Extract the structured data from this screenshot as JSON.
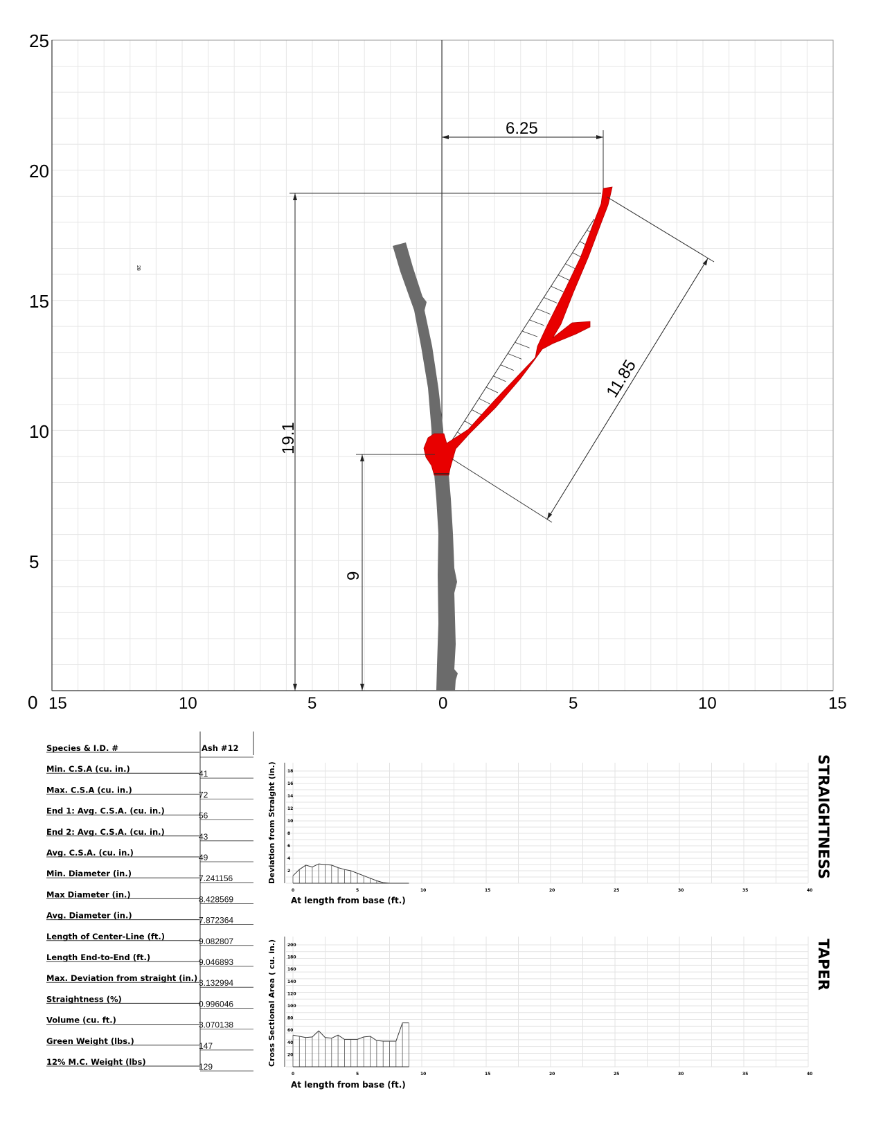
{
  "colors": {
    "trunk": "#6b6b6b",
    "highlight": "#e80000",
    "grid": "#e6e6e6",
    "frame": "#555555"
  },
  "main_plot": {
    "y_ticks": [
      "25",
      "20",
      "15",
      "10",
      "5",
      "0"
    ],
    "x_ticks": [
      "15",
      "10",
      "5",
      "0",
      "5",
      "10",
      "15"
    ],
    "stray_mark": "28",
    "dims": {
      "width": "6.25",
      "total_height": "19.1",
      "branch_height": "9",
      "branch_length": "11.85"
    }
  },
  "table": {
    "rows": [
      {
        "label": "Species & I.D. #",
        "value": "Ash #12"
      },
      {
        "label": "Min. C.S.A (cu. in.)",
        "value": "41"
      },
      {
        "label": "Max. C.S.A (cu. in.)",
        "value": "72"
      },
      {
        "label": "End 1:  Avg. C.S.A. (cu. in.)",
        "value": "56"
      },
      {
        "label": "End 2:  Avg. C.S.A. (cu. in.)",
        "value": "43"
      },
      {
        "label": "Avg. C.S.A. (cu. in.)",
        "value": "49"
      },
      {
        "label": "Min. Diameter (in.)",
        "value": "7.241156"
      },
      {
        "label": "Max Diameter (in.)",
        "value": "8.428569"
      },
      {
        "label": "Avg. Diameter (in.)",
        "value": "7.872364"
      },
      {
        "label": "Length of Center-Line (ft.)",
        "value": "9.082807"
      },
      {
        "label": "Length End-to-End (ft.)",
        "value": "9.046893"
      },
      {
        "label": "Max. Deviation from straight (in.)",
        "value": "3.132994"
      },
      {
        "label": "Straightness (%)",
        "value": "0.996046"
      },
      {
        "label": "Volume (cu. ft.)",
        "value": "3.070138"
      },
      {
        "label": "Green Weight (lbs.)",
        "value": "147"
      },
      {
        "label": "12% M.C. Weight (lbs)",
        "value": "129"
      }
    ]
  },
  "chart_data": [
    {
      "type": "area",
      "title": "STRAIGHTNESS",
      "xlabel": "At length from base (ft.)",
      "ylabel": "Deviation from Straight (in.)",
      "xlim": [
        0,
        40
      ],
      "ylim": [
        0,
        18
      ],
      "x_ticks": [
        "0",
        "5",
        "10",
        "15",
        "20",
        "25",
        "30",
        "35",
        "40"
      ],
      "y_ticks": [
        "2",
        "4",
        "6",
        "8",
        "10",
        "12",
        "14",
        "16",
        "18"
      ],
      "x": [
        0,
        0.5,
        1,
        1.5,
        2,
        2.5,
        3,
        3.5,
        4,
        4.5,
        5,
        5.5,
        6,
        6.5,
        7,
        7.5,
        8,
        8.5,
        9
      ],
      "values": [
        1.2,
        2.2,
        2.9,
        2.6,
        3.1,
        3.0,
        2.9,
        2.5,
        2.2,
        2.0,
        1.6,
        1.2,
        0.8,
        0.4,
        0.1,
        0.0,
        0.0,
        0.0,
        0.0
      ]
    },
    {
      "type": "area",
      "title": "TAPER",
      "xlabel": "At length from base (ft.)",
      "ylabel": "Cross Sectional Area ( cu. in.)",
      "xlim": [
        0,
        40
      ],
      "ylim": [
        0,
        200
      ],
      "x_ticks": [
        "0",
        "5",
        "10",
        "15",
        "20",
        "25",
        "30",
        "35",
        "40"
      ],
      "y_ticks": [
        "20",
        "40",
        "60",
        "80",
        "100",
        "120",
        "140",
        "160",
        "180",
        "200"
      ],
      "x": [
        0,
        0.5,
        1,
        1.5,
        2,
        2.5,
        3,
        3.5,
        4,
        4.5,
        5,
        5.5,
        6,
        6.5,
        7,
        7.5,
        8,
        8.5,
        9
      ],
      "values": [
        52,
        50,
        48,
        49,
        59,
        48,
        47,
        52,
        45,
        45,
        45,
        49,
        50,
        43,
        42,
        42,
        42,
        72,
        72
      ]
    }
  ]
}
